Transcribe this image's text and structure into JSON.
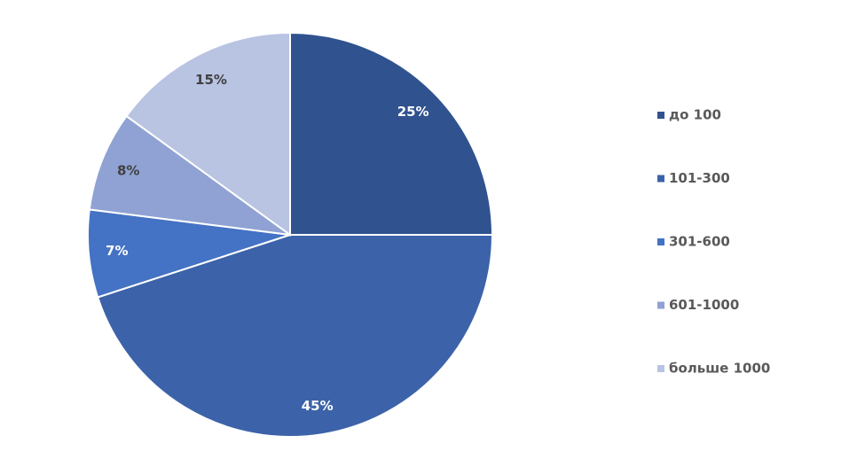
{
  "chart_data": {
    "type": "pie",
    "categories": [
      "до 100",
      "101-300",
      "301-600",
      "601-1000",
      "больше 1000"
    ],
    "values": [
      25,
      45,
      7,
      8,
      15
    ],
    "value_labels": [
      "25%",
      "45%",
      "7%",
      "8%",
      "15%"
    ],
    "colors": [
      "#30538f",
      "#3c63a9",
      "#4472c4",
      "#8fa2d3",
      "#b9c3e2"
    ],
    "legend": "right"
  }
}
